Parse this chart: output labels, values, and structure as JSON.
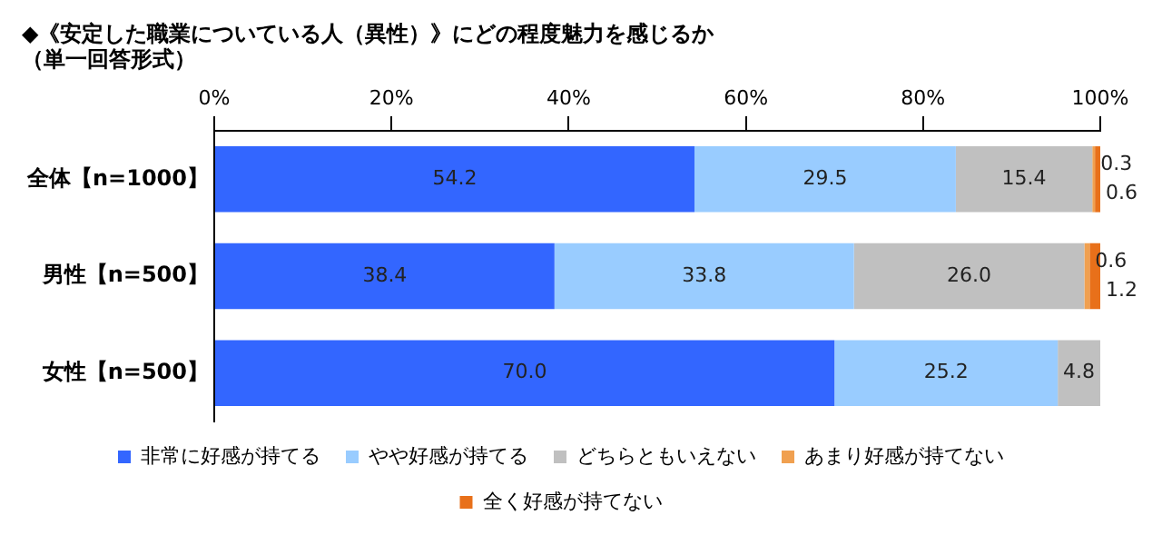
{
  "chart_data": {
    "type": "bar",
    "orientation": "horizontal",
    "stacked": true,
    "title": "◆《安定した職業についている人（異性）》にどの程度魅力を感じるか",
    "subtitle": "（単一回答形式）",
    "categories": [
      "全体【n=1000】",
      "男性【n=500】",
      "女性【n=500】"
    ],
    "series": [
      {
        "name": "非常に好感が持てる",
        "color": "#3366ff",
        "values": [
          54.2,
          38.4,
          70.0
        ],
        "value_labels": [
          "54.2",
          "38.4",
          "70.0"
        ]
      },
      {
        "name": "やや好感が持てる",
        "color": "#99ccff",
        "values": [
          29.5,
          33.8,
          25.2
        ],
        "value_labels": [
          "29.5",
          "33.8",
          "25.2"
        ]
      },
      {
        "name": "どちらともいえない",
        "color": "#c0c0c0",
        "values": [
          15.4,
          26.0,
          4.8
        ],
        "value_labels": [
          "15.4",
          "26.0",
          "4.8"
        ]
      },
      {
        "name": "あまり好感が持てない",
        "color": "#f0a050",
        "values": [
          0.3,
          0.6,
          0
        ],
        "value_labels": [
          "0.3",
          "0.6",
          null
        ]
      },
      {
        "name": "全く好感が持てない",
        "color": "#e8701a",
        "values": [
          0.6,
          1.2,
          0
        ],
        "value_labels": [
          "0.6",
          "1.2",
          null
        ]
      }
    ],
    "xlim": [
      0,
      100
    ],
    "xticks": [
      {
        "value": 0,
        "label": "0%"
      },
      {
        "value": 20,
        "label": "20%"
      },
      {
        "value": 40,
        "label": "40%"
      },
      {
        "value": 60,
        "label": "60%"
      },
      {
        "value": 80,
        "label": "80%"
      },
      {
        "value": 100,
        "label": "100%"
      }
    ],
    "grid": false,
    "legend": "bottom"
  }
}
